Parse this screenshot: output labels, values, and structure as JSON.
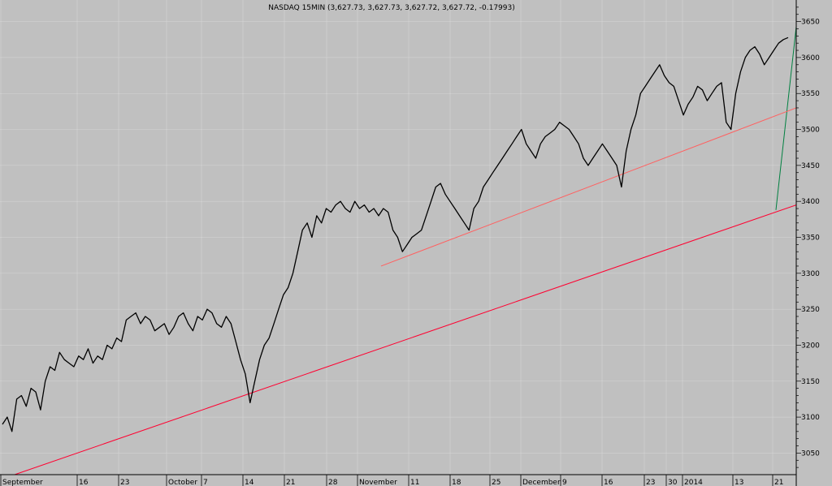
{
  "chart_data": {
    "type": "line",
    "title": "NASDAQ 15MIN (3,627.73, 3,627.73, 3,627.72, 3,627.72, -0.17993)",
    "xlabel": "",
    "ylabel": "",
    "ylim": [
      3020,
      3680
    ],
    "y_ticks": [
      3050,
      3100,
      3150,
      3200,
      3250,
      3300,
      3350,
      3400,
      3450,
      3500,
      3550,
      3600,
      3650
    ],
    "x_ticks": [
      "September",
      "16",
      "23",
      "October",
      "7",
      "14",
      "21",
      "28",
      "November",
      "11",
      "18",
      "25",
      "December",
      "9",
      "16",
      "23",
      "30",
      "2014",
      "13",
      "21"
    ],
    "grid": true,
    "colors": {
      "background": "#c0c0c0",
      "price": "#000000",
      "upper_channel": "#008040",
      "lower_channel": "#ff6060",
      "long_trend": "#ff0030",
      "grid": "#ffffff"
    },
    "series": [
      {
        "values": [
          3090,
          3100,
          3080,
          3125,
          3130,
          3115,
          3140,
          3135,
          3110,
          3150,
          3170,
          3165,
          3190,
          3180,
          3175,
          3170,
          3185,
          3180,
          3195,
          3175,
          3185,
          3180,
          3200,
          3195,
          3210,
          3205,
          3235,
          3240,
          3245,
          3230,
          3240,
          3235,
          3220,
          3225,
          3230,
          3215,
          3225,
          3240,
          3245,
          3230,
          3220,
          3240,
          3235,
          3250,
          3245,
          3230,
          3225,
          3240,
          3230,
          3205,
          3180,
          3160,
          3120,
          3150,
          3180,
          3200,
          3210,
          3230,
          3250,
          3270,
          3280,
          3300,
          3330,
          3360,
          3370,
          3350,
          3380,
          3370,
          3390,
          3385,
          3395,
          3400,
          3390,
          3385,
          3400,
          3390,
          3395,
          3385,
          3390,
          3380,
          3390,
          3385,
          3360,
          3350,
          3330,
          3340,
          3350,
          3355,
          3360,
          3380,
          3400,
          3420,
          3425,
          3410,
          3400,
          3390,
          3380,
          3370,
          3360,
          3390,
          3400,
          3420,
          3430,
          3440,
          3450,
          3460,
          3470,
          3480,
          3490,
          3500,
          3480,
          3470,
          3460,
          3480,
          3490,
          3495,
          3500,
          3510,
          3505,
          3500,
          3490,
          3480,
          3460,
          3450,
          3460,
          3470,
          3480,
          3470,
          3460,
          3450,
          3420,
          3470,
          3500,
          3520,
          3550,
          3560,
          3570,
          3580,
          3590,
          3575,
          3565,
          3560,
          3540,
          3520,
          3535,
          3545,
          3560,
          3555,
          3540,
          3550,
          3560,
          3565,
          3510,
          3500,
          3550,
          3580,
          3600,
          3610,
          3615,
          3605,
          3590,
          3600,
          3610,
          3620,
          3625,
          3627.72
        ]
      }
    ],
    "channels": [
      {
        "name": "upper",
        "start": {
          "x": "21",
          "y": 3388
        },
        "end": {
          "x": "21-end",
          "y": 3643
        }
      },
      {
        "name": "middle",
        "start": {
          "x": "November",
          "y": 3310
        },
        "end": {
          "x": "21-end",
          "y": 3530
        }
      },
      {
        "name": "lower",
        "start": {
          "x": "September",
          "y": 3020
        },
        "end": {
          "x": "21-end",
          "y": 3395
        }
      }
    ]
  }
}
